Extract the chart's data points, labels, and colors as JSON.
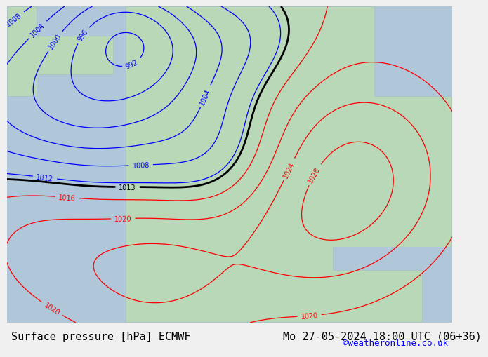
{
  "title_left": "Surface pressure [hPa] ECMWF",
  "title_right": "Mo 27-05-2024 18:00 UTC (06+36)",
  "copyright": "©weatheronline.co.uk",
  "bg_color": "#d0e8d0",
  "land_color": "#c8e6c8",
  "sea_color": "#b0c8e8",
  "font_size_title": 11,
  "font_size_copyright": 9,
  "footer_bg": "#f0f0f0"
}
